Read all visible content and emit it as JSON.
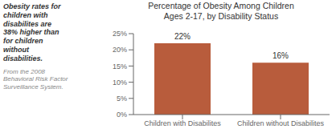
{
  "chart_data": {
    "type": "bar",
    "title": "Percentage of Obesity Among Children",
    "subtitle": "Ages 2-17, by Disability Status",
    "categories": [
      "Children with Disabilites",
      "Children without Disabilites"
    ],
    "values": [
      22,
      16
    ],
    "value_labels": [
      "22%",
      "16%"
    ],
    "data_labels": true,
    "color": "#b85c3c",
    "ylim": [
      0,
      25
    ],
    "yticks": [
      {
        "value": 0,
        "label": "0%"
      },
      {
        "value": 5,
        "label": "5%"
      },
      {
        "value": 10,
        "label": "10%"
      },
      {
        "value": 15,
        "label": "15%"
      },
      {
        "value": 20,
        "label": "20%"
      },
      {
        "value": 25,
        "label": "25%"
      }
    ],
    "grid": false,
    "annotations": [
      "Obesity rates for\nchildren with\ndisabilites are\n38% higher than\nfor children\nwithout\ndisabilities.",
      "From the 2008\nBehavioral Risk Factor\nSurveillance System."
    ]
  }
}
